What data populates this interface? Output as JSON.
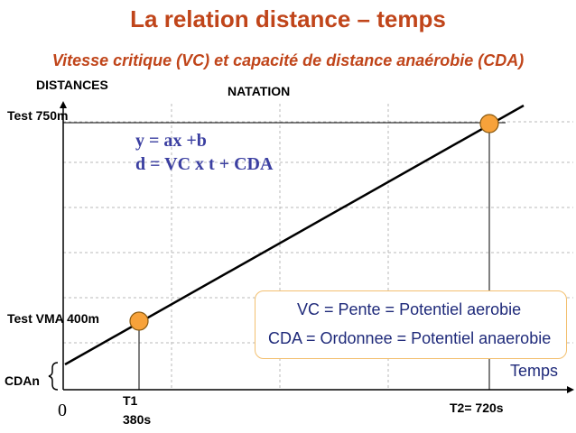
{
  "title": "La relation distance – temps",
  "subtitle": "Vitesse critique (VC) et capacité de distance anaérobie (CDA)",
  "y_axis_label": "DISTANCES",
  "panel_label": "NATATION",
  "x_axis_label": "Temps",
  "origin_label": "0",
  "equation_1": "y = ax +b",
  "equation_2": "d = VC x t + CDA",
  "points": {
    "test_750": "Test 750m",
    "test_vma": "Test VMA 400m",
    "cda": "CDAn",
    "t1_name": "T1",
    "t1_value": "380s",
    "t2": "T2= 720s"
  },
  "legend": {
    "vc": "VC = Pente = Potentiel aerobie",
    "cda": "CDA = Ordonnee = Potentiel anaerobie"
  },
  "colors": {
    "title": "#c0451a",
    "equation": "#3b3fa1",
    "marker_fill": "#f7a23a",
    "legend_border": "#f3c070",
    "legend_text": "#1f2a7a"
  }
}
